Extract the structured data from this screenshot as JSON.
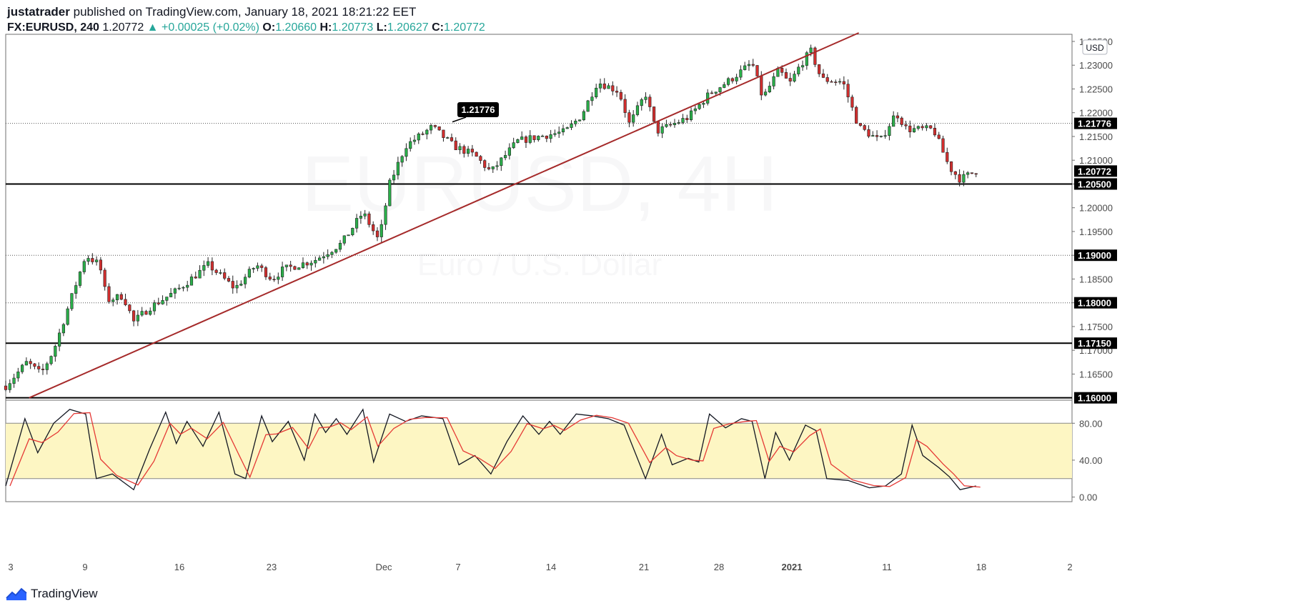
{
  "header": {
    "author": "justatrader",
    "published_text": "published on TradingView.com, January 18, 2021 18:21:22 EET",
    "symbol": "FX:EURUSD, 240",
    "last_price": "1.20772",
    "change": "+0.00025 (+0.02%)",
    "open_label": "O:",
    "open": "1.20660",
    "high_label": "H:",
    "high": "1.20773",
    "low_label": "L:",
    "low": "1.20627",
    "close_label": "C:",
    "close": "1.20772"
  },
  "watermark": {
    "title": "EURUSD, 4H",
    "subtitle": "Euro / U.S. Dollar"
  },
  "footer": {
    "brand": "TradingView"
  },
  "colors": {
    "up": "#26a69a",
    "up_body": "#2ab04a",
    "down": "#d32f2f",
    "trendline": "#a52a2a",
    "stoch_k": "#131722",
    "stoch_d": "#e53935",
    "stoch_band": "#fdf6c3"
  },
  "chart_data": [
    {
      "type": "candlestick",
      "currency_label": "USD",
      "ylim": [
        1.1595,
        1.2365
      ],
      "y_ticks": [
        "1.16500",
        "1.17000",
        "1.17500",
        "1.18000",
        "1.18500",
        "1.19000",
        "1.19500",
        "1.20000",
        "1.20500",
        "1.21000",
        "1.21500",
        "1.22000",
        "1.22500",
        "1.23000",
        "1.23500"
      ],
      "x_ticks": [
        "3",
        "9",
        "16",
        "23",
        "Dec",
        "7",
        "14",
        "21",
        "28",
        "2021",
        "11",
        "18",
        "2"
      ],
      "horizontal_levels": [
        {
          "value": 1.205,
          "label": "1.20500",
          "style": "solid"
        },
        {
          "value": 1.1715,
          "label": "1.17150",
          "style": "solid"
        },
        {
          "value": 1.16,
          "label": "1.16000",
          "style": "solid"
        },
        {
          "value": 1.19,
          "label": "1.19000",
          "style": "dotted"
        },
        {
          "value": 1.18,
          "label": "1.18000",
          "style": "dotted"
        },
        {
          "value": 1.21776,
          "label": "1.21776",
          "style": "dotted"
        }
      ],
      "callout": {
        "label": "1.21776",
        "value": 1.21776
      },
      "current_price": {
        "label": "1.20772",
        "value": 1.20772
      },
      "trendline": [
        {
          "x": 0.022,
          "y": 1.16
        },
        {
          "x": 0.8,
          "y": 1.2368
        }
      ],
      "anchors": [
        [
          0.0,
          1.1625
        ],
        [
          0.02,
          1.1675
        ],
        [
          0.033,
          1.165
        ],
        [
          0.045,
          1.17
        ],
        [
          0.06,
          1.18
        ],
        [
          0.075,
          1.19
        ],
        [
          0.088,
          1.188
        ],
        [
          0.095,
          1.1805
        ],
        [
          0.11,
          1.1815
        ],
        [
          0.12,
          1.176
        ],
        [
          0.135,
          1.179
        ],
        [
          0.16,
          1.1825
        ],
        [
          0.19,
          1.188
        ],
        [
          0.205,
          1.185
        ],
        [
          0.215,
          1.183
        ],
        [
          0.235,
          1.188
        ],
        [
          0.25,
          1.185
        ],
        [
          0.26,
          1.187
        ],
        [
          0.29,
          1.189
        ],
        [
          0.315,
          1.1925
        ],
        [
          0.335,
          1.199
        ],
        [
          0.35,
          1.193
        ],
        [
          0.36,
          1.205
        ],
        [
          0.375,
          1.213
        ],
        [
          0.4,
          1.217
        ],
        [
          0.42,
          1.213
        ],
        [
          0.44,
          1.211
        ],
        [
          0.455,
          1.2075
        ],
        [
          0.48,
          1.214
        ],
        [
          0.5,
          1.215
        ],
        [
          0.525,
          1.216
        ],
        [
          0.54,
          1.2195
        ],
        [
          0.555,
          1.2265
        ],
        [
          0.575,
          1.2245
        ],
        [
          0.585,
          1.2175
        ],
        [
          0.6,
          1.224
        ],
        [
          0.61,
          1.216
        ],
        [
          0.62,
          1.217
        ],
        [
          0.64,
          1.219
        ],
        [
          0.66,
          1.224
        ],
        [
          0.68,
          1.227
        ],
        [
          0.7,
          1.2305
        ],
        [
          0.71,
          1.223
        ],
        [
          0.725,
          1.229
        ],
        [
          0.735,
          1.226
        ],
        [
          0.745,
          1.23
        ],
        [
          0.755,
          1.233
        ],
        [
          0.765,
          1.227
        ],
        [
          0.785,
          1.2265
        ],
        [
          0.8,
          1.217
        ],
        [
          0.82,
          1.214
        ],
        [
          0.835,
          1.22
        ],
        [
          0.845,
          1.2165
        ],
        [
          0.87,
          1.2165
        ],
        [
          0.885,
          1.2085
        ],
        [
          0.895,
          1.206
        ],
        [
          0.91,
          1.2077
        ]
      ],
      "candle_count": 236
    },
    {
      "type": "line",
      "name": "stochastic",
      "ylim": [
        -5,
        105
      ],
      "y_ticks": [
        "80.00",
        "40.00",
        "0.00"
      ],
      "band": [
        20,
        80
      ],
      "k_pivots": [
        [
          0.0,
          12
        ],
        [
          0.018,
          85
        ],
        [
          0.03,
          48
        ],
        [
          0.045,
          80
        ],
        [
          0.06,
          95
        ],
        [
          0.075,
          90
        ],
        [
          0.085,
          20
        ],
        [
          0.1,
          25
        ],
        [
          0.12,
          8
        ],
        [
          0.135,
          52
        ],
        [
          0.15,
          92
        ],
        [
          0.16,
          58
        ],
        [
          0.17,
          82
        ],
        [
          0.185,
          55
        ],
        [
          0.2,
          92
        ],
        [
          0.215,
          25
        ],
        [
          0.225,
          20
        ],
        [
          0.24,
          88
        ],
        [
          0.25,
          60
        ],
        [
          0.265,
          82
        ],
        [
          0.28,
          40
        ],
        [
          0.29,
          90
        ],
        [
          0.3,
          70
        ],
        [
          0.31,
          85
        ],
        [
          0.32,
          68
        ],
        [
          0.335,
          95
        ],
        [
          0.345,
          38
        ],
        [
          0.36,
          90
        ],
        [
          0.375,
          82
        ],
        [
          0.39,
          88
        ],
        [
          0.41,
          85
        ],
        [
          0.425,
          35
        ],
        [
          0.44,
          45
        ],
        [
          0.455,
          25
        ],
        [
          0.47,
          60
        ],
        [
          0.485,
          88
        ],
        [
          0.5,
          68
        ],
        [
          0.51,
          82
        ],
        [
          0.52,
          68
        ],
        [
          0.535,
          90
        ],
        [
          0.55,
          88
        ],
        [
          0.565,
          85
        ],
        [
          0.58,
          78
        ],
        [
          0.6,
          20
        ],
        [
          0.615,
          68
        ],
        [
          0.625,
          35
        ],
        [
          0.64,
          42
        ],
        [
          0.65,
          38
        ],
        [
          0.66,
          90
        ],
        [
          0.675,
          75
        ],
        [
          0.69,
          85
        ],
        [
          0.7,
          82
        ],
        [
          0.712,
          20
        ],
        [
          0.722,
          70
        ],
        [
          0.735,
          40
        ],
        [
          0.75,
          78
        ],
        [
          0.76,
          72
        ],
        [
          0.77,
          20
        ],
        [
          0.79,
          18
        ],
        [
          0.81,
          10
        ],
        [
          0.825,
          12
        ],
        [
          0.84,
          25
        ],
        [
          0.85,
          78
        ],
        [
          0.86,
          45
        ],
        [
          0.875,
          32
        ],
        [
          0.885,
          22
        ],
        [
          0.895,
          8
        ],
        [
          0.91,
          12
        ]
      ]
    }
  ]
}
